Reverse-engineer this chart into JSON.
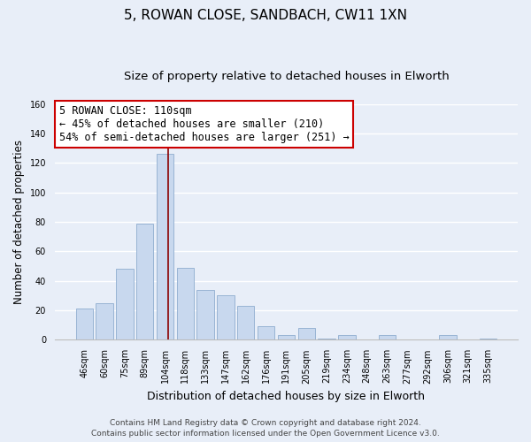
{
  "title": "5, ROWAN CLOSE, SANDBACH, CW11 1XN",
  "subtitle": "Size of property relative to detached houses in Elworth",
  "xlabel": "Distribution of detached houses by size in Elworth",
  "ylabel": "Number of detached properties",
  "bar_labels": [
    "46sqm",
    "60sqm",
    "75sqm",
    "89sqm",
    "104sqm",
    "118sqm",
    "133sqm",
    "147sqm",
    "162sqm",
    "176sqm",
    "191sqm",
    "205sqm",
    "219sqm",
    "234sqm",
    "248sqm",
    "263sqm",
    "277sqm",
    "292sqm",
    "306sqm",
    "321sqm",
    "335sqm"
  ],
  "bar_values": [
    21,
    25,
    48,
    79,
    126,
    49,
    34,
    30,
    23,
    9,
    3,
    8,
    1,
    3,
    0,
    3,
    0,
    0,
    3,
    0,
    1
  ],
  "bar_color": "#c8d8ee",
  "bar_edge_color": "#99b4d4",
  "vline_color": "#8b0000",
  "vline_x": 4.15,
  "ylim": [
    0,
    160
  ],
  "yticks": [
    0,
    20,
    40,
    60,
    80,
    100,
    120,
    140,
    160
  ],
  "annotation_line1": "5 ROWAN CLOSE: 110sqm",
  "annotation_line2": "← 45% of detached houses are smaller (210)",
  "annotation_line3": "54% of semi-detached houses are larger (251) →",
  "annotation_box_color": "#ffffff",
  "annotation_border_color": "#cc0000",
  "footer_line1": "Contains HM Land Registry data © Crown copyright and database right 2024.",
  "footer_line2": "Contains public sector information licensed under the Open Government Licence v3.0.",
  "bg_color": "#e8eef8",
  "plot_bg_color": "#e8eef8",
  "grid_color": "#ffffff",
  "title_fontsize": 11,
  "subtitle_fontsize": 9.5,
  "ylabel_fontsize": 8.5,
  "xlabel_fontsize": 9,
  "tick_fontsize": 7,
  "annotation_fontsize": 8.5,
  "footer_fontsize": 6.5
}
